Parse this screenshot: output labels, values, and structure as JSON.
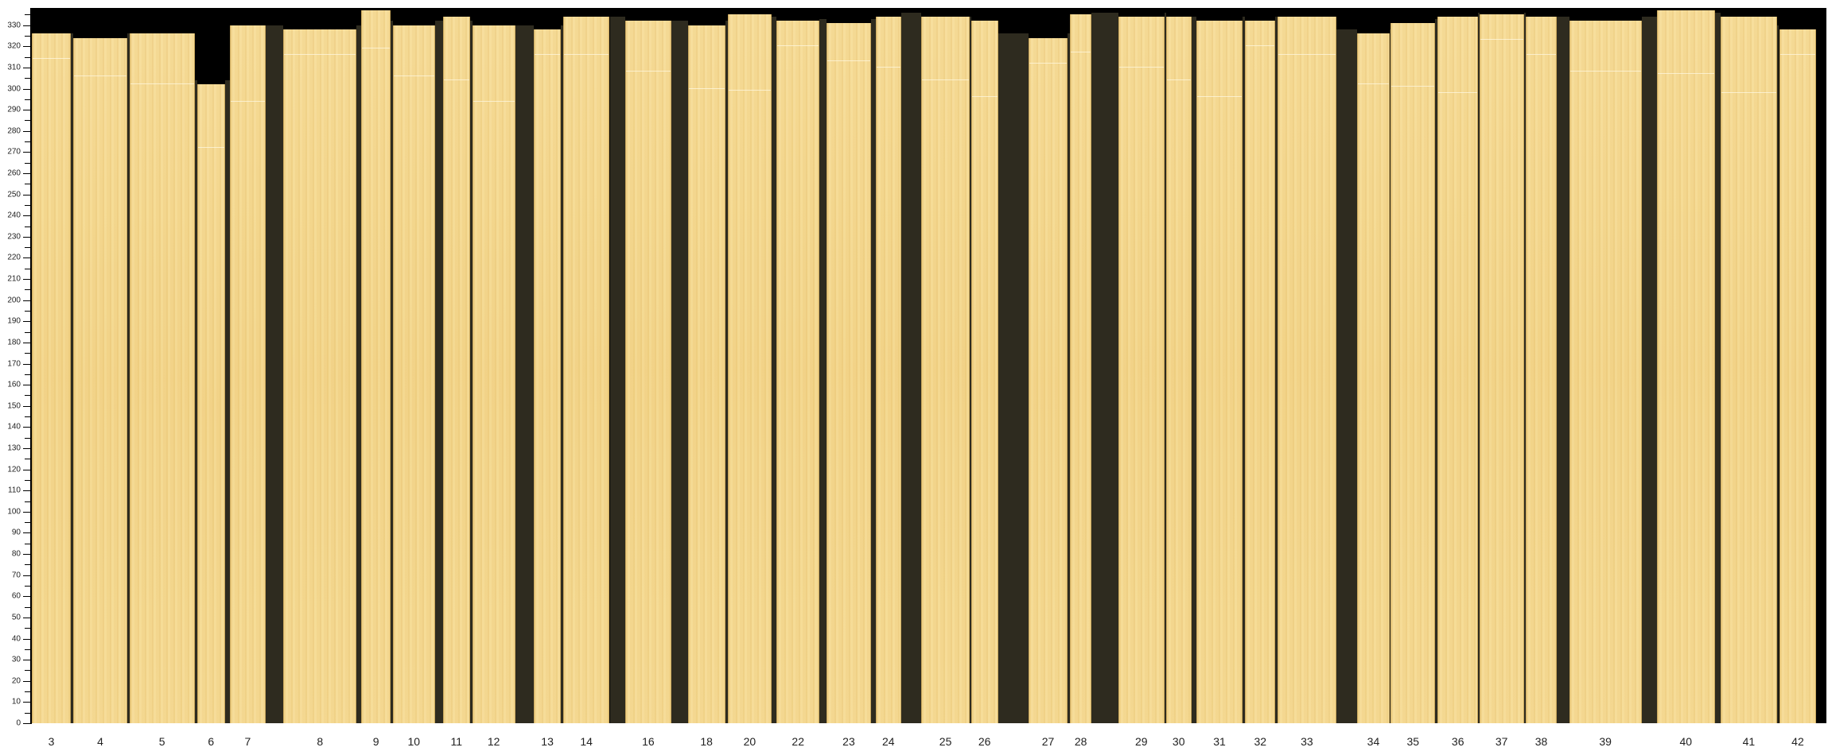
{
  "chart_data": {
    "type": "bar",
    "title": "",
    "xlabel": "",
    "ylabel": "",
    "ylim": [
      0,
      338
    ],
    "yticks_major_step": 10,
    "yticks_minor_step": 5,
    "grid": false,
    "categories": [
      "3",
      "4",
      "5",
      "6",
      "7",
      "8",
      "9",
      "10",
      "11",
      "12",
      "13",
      "14",
      "16",
      "18",
      "20",
      "22",
      "23",
      "24",
      "25",
      "26",
      "27",
      "28",
      "29",
      "30",
      "31",
      "32",
      "33",
      "34",
      "35",
      "36",
      "37",
      "38",
      "39",
      "40",
      "41",
      "42"
    ],
    "values": [
      326,
      324,
      326,
      302,
      330,
      328,
      337,
      330,
      334,
      330,
      328,
      334,
      332,
      330,
      335,
      332,
      331,
      334,
      334,
      332,
      324,
      335,
      334,
      334,
      332,
      332,
      334,
      326,
      331,
      334,
      335,
      334,
      332,
      337,
      334,
      328
    ],
    "colors": {
      "board": "#f4d78e",
      "background": "#000000",
      "shadow": "#2e2b1f"
    }
  }
}
